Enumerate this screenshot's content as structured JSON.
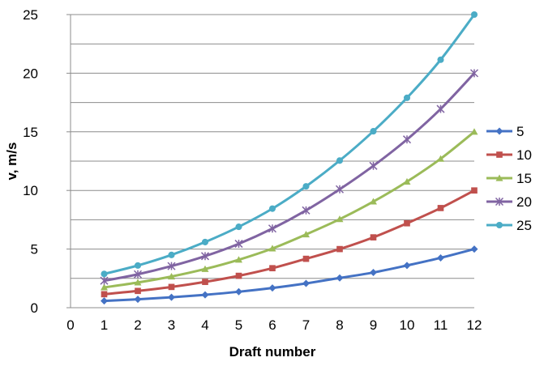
{
  "chart_data": {
    "type": "line",
    "title": "",
    "xlabel": "Draft number",
    "ylabel": "v, m/s",
    "xlim": [
      0,
      12
    ],
    "ylim": [
      0,
      25
    ],
    "xticks": [
      "0",
      "1",
      "2",
      "3",
      "4",
      "5",
      "6",
      "7",
      "8",
      "9",
      "10",
      "11",
      "12"
    ],
    "yticks": [
      "0",
      "5",
      "10",
      "15",
      "20",
      "25"
    ],
    "grid": "horizontal",
    "legend_position": "right",
    "x": [
      1,
      2,
      3,
      4,
      5,
      6,
      7,
      8,
      9,
      10,
      11,
      12
    ],
    "series": [
      {
        "name": "5",
        "color": "#4472C4",
        "marker": "diamond",
        "values": [
          0.58,
          0.72,
          0.89,
          1.1,
          1.36,
          1.68,
          2.07,
          2.54,
          3.0,
          3.6,
          4.25,
          5.0
        ]
      },
      {
        "name": "10",
        "color": "#C0504D",
        "marker": "square",
        "values": [
          1.15,
          1.43,
          1.77,
          2.2,
          2.72,
          3.37,
          4.17,
          5.0,
          6.0,
          7.2,
          8.5,
          10.0
        ]
      },
      {
        "name": "15",
        "color": "#9BBB59",
        "marker": "triangle",
        "values": [
          1.73,
          2.15,
          2.66,
          3.3,
          4.09,
          5.05,
          6.25,
          7.55,
          9.05,
          10.75,
          12.7,
          15.0
        ]
      },
      {
        "name": "20",
        "color": "#8064A2",
        "marker": "star",
        "values": [
          2.3,
          2.85,
          3.55,
          4.4,
          5.45,
          6.75,
          8.3,
          10.1,
          12.1,
          14.35,
          16.95,
          20.0
        ]
      },
      {
        "name": "25",
        "color": "#4BACC6",
        "marker": "circle",
        "values": [
          2.88,
          3.6,
          4.5,
          5.6,
          6.9,
          8.45,
          10.35,
          12.55,
          15.05,
          17.9,
          21.15,
          25.0
        ]
      }
    ]
  }
}
